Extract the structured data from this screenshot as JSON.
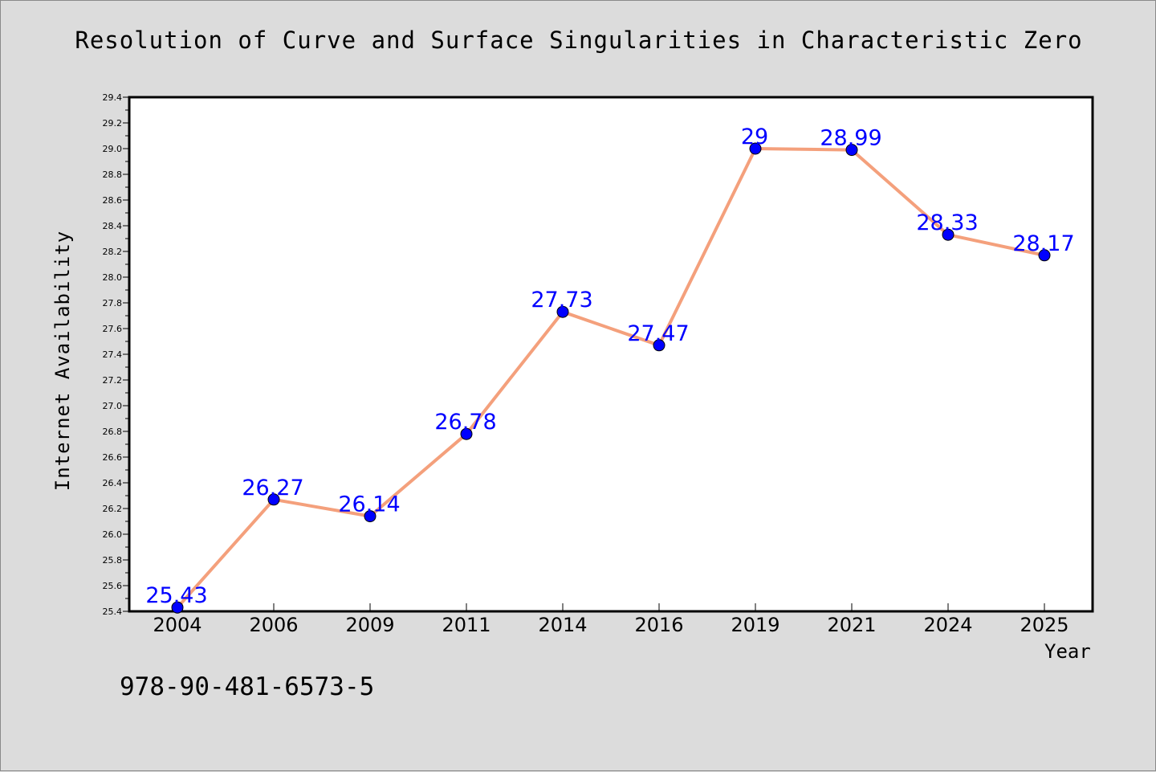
{
  "chart_data": {
    "type": "line",
    "title": "Resolution of Curve and Surface Singularities in Characteristic Zero",
    "xlabel": "Year",
    "ylabel": "Internet Availability",
    "categories": [
      "2004",
      "2006",
      "2009",
      "2011",
      "2014",
      "2016",
      "2019",
      "2021",
      "2024",
      "2025"
    ],
    "series": [
      {
        "values": [
          25.43,
          26.27,
          26.14,
          26.78,
          27.73,
          27.47,
          29,
          28.99,
          28.33,
          28.17
        ],
        "data_labels": [
          "25.43",
          "26.27",
          "26.14",
          "26.78",
          "27.73",
          "27.47",
          "29",
          "28.99",
          "28.33",
          "28.17"
        ]
      }
    ],
    "ylim": [
      25.4,
      29.4
    ],
    "yticks": [
      "25.4",
      "25.6",
      "25.8",
      "26.0",
      "26.2",
      "26.4",
      "26.6",
      "26.8",
      "27.0",
      "27.2",
      "27.4",
      "27.6",
      "27.8",
      "28.0",
      "28.2",
      "28.4",
      "28.6",
      "28.8",
      "29.0",
      "29.2",
      "29.4"
    ],
    "grid": false,
    "legend": "none",
    "colors": {
      "line": "#f4a07c",
      "marker": "#0000ff",
      "data_label": "#0000ff",
      "background": "#dcdcdc",
      "plot_area": "#ffffff"
    }
  },
  "footer": {
    "isbn": "978-90-481-6573-5"
  }
}
